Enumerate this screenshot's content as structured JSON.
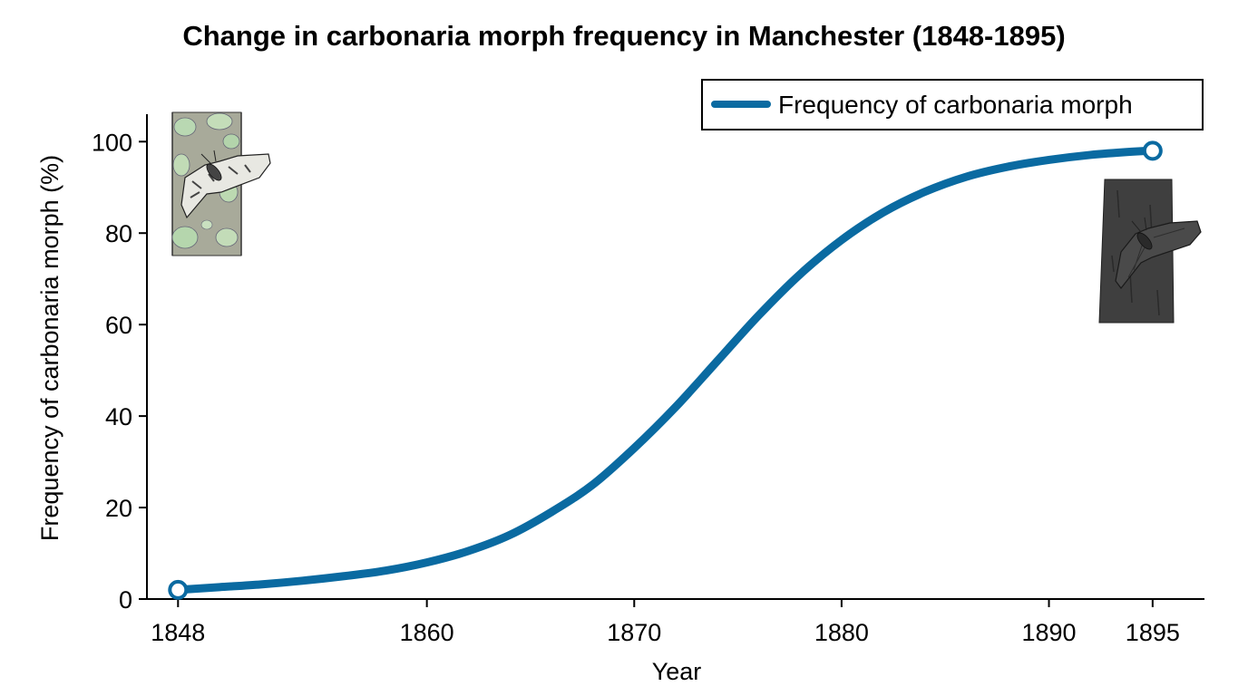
{
  "chart_data": {
    "type": "line",
    "title": "Change in carbonaria morph frequency in Manchester (1848-1895)",
    "xlabel": "Year",
    "ylabel": "Frequency of carbonaria morph (%)",
    "xlim": [
      1846.5,
      1897.5
    ],
    "ylim": [
      0,
      106
    ],
    "x_ticks": [
      1848,
      1860,
      1870,
      1880,
      1890,
      1895
    ],
    "y_ticks": [
      0,
      20,
      40,
      60,
      80,
      100
    ],
    "grid": false,
    "legend_position": "top-right",
    "series": [
      {
        "name": "Frequency of carbonaria morph",
        "color": "#0a6aa1",
        "x": [
          1848,
          1850,
          1852,
          1854,
          1856,
          1858,
          1860,
          1862,
          1864,
          1866,
          1868,
          1870,
          1872,
          1874,
          1876,
          1878,
          1880,
          1882,
          1884,
          1886,
          1888,
          1890,
          1892,
          1894,
          1895
        ],
        "y": [
          2,
          2.6,
          3.2,
          4,
          5,
          6.2,
          8,
          10.5,
          14,
          19,
          25,
          33,
          42,
          52,
          62,
          71,
          78.5,
          84.5,
          89,
          92.3,
          94.5,
          96,
          97.1,
          97.8,
          98
        ],
        "endpoint_markers": [
          {
            "x": 1848,
            "y": 2
          },
          {
            "x": 1895,
            "y": 98
          }
        ]
      }
    ],
    "illustrations": [
      {
        "name": "typical-moth-on-lichen-bark",
        "position": "top-left"
      },
      {
        "name": "carbonaria-moth-on-dark-bark",
        "position": "right"
      }
    ]
  }
}
